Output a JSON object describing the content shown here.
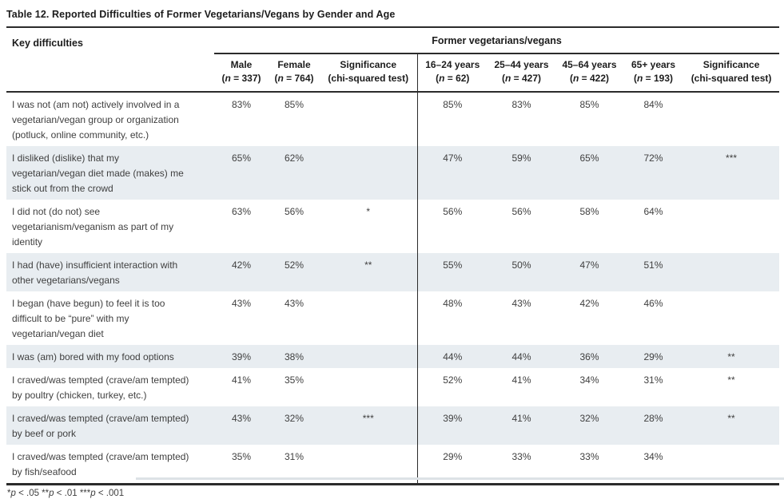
{
  "caption": "Table 12. Reported Difficulties of Former Vegetarians/Vegans by Gender and Age",
  "table": {
    "key_column_header": "Key difficulties",
    "spanner": "Former vegetarians/vegans",
    "columns": [
      {
        "label": "Male",
        "sub": "(n = 337)"
      },
      {
        "label": "Female",
        "sub": "(n = 764)"
      },
      {
        "label": "Significance",
        "sub": "(chi-squared test)"
      },
      {
        "label": "16–24 years",
        "sub": "(n = 62)"
      },
      {
        "label": "25–44 years",
        "sub": "(n = 427)"
      },
      {
        "label": "45–64 years",
        "sub": "(n = 422)"
      },
      {
        "label": "65+ years",
        "sub": "(n = 193)"
      },
      {
        "label": "Significance",
        "sub": "(chi-squared test)"
      }
    ],
    "rows": [
      {
        "difficulty": "I was not (am not) actively involved in a vegetarian/vegan group or organization (potluck, online community, etc.)",
        "values": [
          "83%",
          "85%",
          "",
          "85%",
          "83%",
          "85%",
          "84%",
          ""
        ]
      },
      {
        "difficulty": "I disliked (dislike) that my vegetarian/vegan diet made (makes) me stick out from the crowd",
        "values": [
          "65%",
          "62%",
          "",
          "47%",
          "59%",
          "65%",
          "72%",
          "***"
        ]
      },
      {
        "difficulty": "I did not (do not) see vegetarianism/veganism as part of my identity",
        "values": [
          "63%",
          "56%",
          "*",
          "56%",
          "56%",
          "58%",
          "64%",
          ""
        ]
      },
      {
        "difficulty": "I had (have) insufficient interaction with other vegetarians/vegans",
        "values": [
          "42%",
          "52%",
          "**",
          "55%",
          "50%",
          "47%",
          "51%",
          ""
        ]
      },
      {
        "difficulty": "I began (have begun) to feel it is too difficult to be “pure” with my vegetarian/vegan diet",
        "values": [
          "43%",
          "43%",
          "",
          "48%",
          "43%",
          "42%",
          "46%",
          ""
        ]
      },
      {
        "difficulty": "I was (am) bored with my food options",
        "values": [
          "39%",
          "38%",
          "",
          "44%",
          "44%",
          "36%",
          "29%",
          "**"
        ]
      },
      {
        "difficulty": "I craved/was tempted (crave/am tempted) by poultry (chicken, turkey, etc.)",
        "values": [
          "41%",
          "35%",
          "",
          "52%",
          "41%",
          "34%",
          "31%",
          "**"
        ]
      },
      {
        "difficulty": "I craved/was tempted (crave/am tempted) by beef or pork",
        "values": [
          "43%",
          "32%",
          "***",
          "39%",
          "41%",
          "32%",
          "28%",
          "**"
        ]
      },
      {
        "difficulty": "I craved/was tempted (crave/am tempted) by fish/seafood",
        "values": [
          "35%",
          "31%",
          "",
          "29%",
          "33%",
          "33%",
          "34%",
          ""
        ]
      }
    ],
    "footnote": "*p < .05 **p < .01 ***p < .001"
  },
  "colors": {
    "row_shade": "#e8edf1",
    "rule": "#2b2b2b",
    "body_text": "#3f3f3f",
    "heading_text": "#1c1c1c"
  }
}
